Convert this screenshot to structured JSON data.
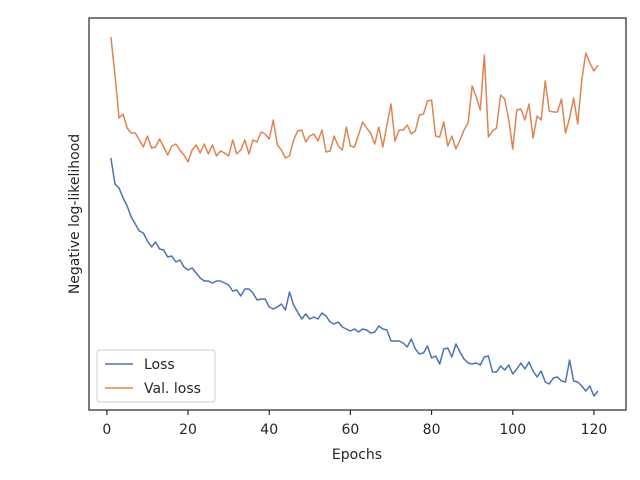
{
  "chart_data": {
    "type": "line",
    "xlabel": "Epochs",
    "ylabel": "Negative log-likelihood",
    "x": [
      1,
      2,
      3,
      4,
      5,
      6,
      7,
      8,
      9,
      10,
      11,
      12,
      13,
      14,
      15,
      16,
      17,
      18,
      19,
      20,
      21,
      22,
      23,
      24,
      25,
      26,
      27,
      28,
      29,
      30,
      31,
      32,
      33,
      34,
      35,
      36,
      37,
      38,
      39,
      40,
      41,
      42,
      43,
      44,
      45,
      46,
      47,
      48,
      49,
      50,
      51,
      52,
      53,
      54,
      55,
      56,
      57,
      58,
      59,
      60,
      61,
      62,
      63,
      64,
      65,
      66,
      67,
      68,
      69,
      70,
      71,
      72,
      73,
      74,
      75,
      76,
      77,
      78,
      79,
      80,
      81,
      82,
      83,
      84,
      85,
      86,
      87,
      88,
      89,
      90,
      91,
      92,
      93,
      94,
      95,
      96,
      97,
      98,
      99,
      100,
      101,
      102,
      103,
      104,
      105,
      106,
      107,
      108,
      109,
      110,
      111,
      112,
      113,
      114,
      115,
      116,
      117,
      118,
      119,
      120,
      121
    ],
    "series": [
      {
        "name": "Loss",
        "color": "#4c72b0",
        "values": [
          252,
          226,
          222,
          212,
          204,
          193,
          186,
          179,
          177,
          169,
          163,
          168,
          161,
          160,
          153,
          154,
          148,
          150,
          143,
          140,
          142,
          137,
          132,
          129,
          129,
          127,
          129,
          129,
          127,
          125,
          119,
          120,
          114,
          121,
          121,
          117,
          110,
          111,
          111,
          103,
          101,
          103,
          106,
          100,
          118,
          105,
          98,
          91,
          96,
          91,
          93,
          91,
          97,
          94,
          88,
          86,
          88,
          83,
          81,
          79,
          81,
          78,
          81,
          80,
          77,
          78,
          84,
          81,
          80,
          69,
          69,
          69,
          67,
          63,
          71,
          61,
          56,
          57,
          64,
          52,
          54,
          46,
          61,
          62,
          53,
          66,
          58,
          51,
          47,
          46,
          47,
          45,
          53,
          54,
          38,
          38,
          44,
          40,
          45,
          36,
          41,
          47,
          41,
          48,
          39,
          33,
          39,
          28,
          26,
          32,
          33,
          29,
          28,
          50,
          29,
          28,
          24,
          19,
          24,
          14,
          19
        ]
      },
      {
        "name": "Val. loss",
        "color": "#dd8452",
        "values": [
          373,
          335,
          292,
          296,
          282,
          277,
          277,
          270,
          263,
          274,
          262,
          263,
          271,
          263,
          255,
          264,
          266,
          260,
          255,
          248,
          260,
          265,
          257,
          266,
          256,
          265,
          254,
          259,
          257,
          254,
          270,
          256,
          260,
          270,
          256,
          270,
          268,
          278,
          276,
          271,
          290,
          265,
          260,
          252,
          254,
          270,
          279,
          280,
          268,
          274,
          276,
          269,
          280,
          258,
          259,
          274,
          264,
          260,
          283,
          264,
          263,
          275,
          288,
          282,
          277,
          266,
          283,
          263,
          285,
          306,
          269,
          280,
          280,
          285,
          276,
          279,
          295,
          296,
          309,
          310,
          274,
          273,
          288,
          264,
          274,
          261,
          270,
          280,
          287,
          324,
          313,
          300,
          355,
          273,
          279,
          282,
          315,
          311,
          291,
          261,
          300,
          301,
          290,
          306,
          272,
          294,
          290,
          329,
          299,
          298,
          298,
          311,
          277,
          292,
          312,
          286,
          330,
          357,
          347,
          339,
          345
        ]
      }
    ],
    "xlim": [
      -4.4,
      127.9
    ],
    "xticks": [
      0,
      20,
      40,
      60,
      80,
      100,
      120
    ],
    "ylim": [
      0,
      392
    ],
    "legend": "lower left"
  }
}
